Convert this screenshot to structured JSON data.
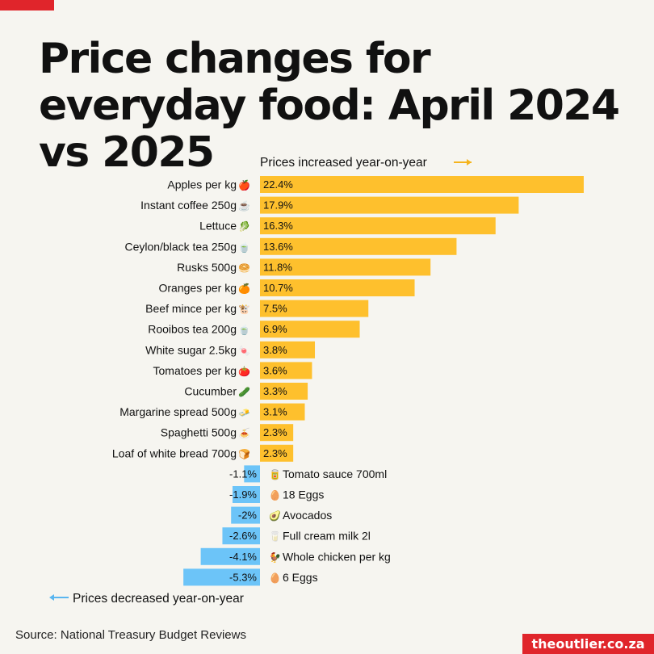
{
  "title": "Price changes for everyday food: April 2024 vs 2025",
  "source": "Source: National Treasury Budget Reviews",
  "brand": "theoutlier.co.za",
  "colors": {
    "positive": "#fec02d",
    "negative": "#6cc4f8",
    "accent": "#e0252b",
    "arrow_pos": "#f5b41d",
    "arrow_neg": "#5ab6f0"
  },
  "chart_data": {
    "type": "bar",
    "orientation": "horizontal",
    "title": "Price changes for everyday food: April 2024 vs 2025",
    "unit": "%",
    "annotations": {
      "increase": "Prices increased year-on-year",
      "decrease": "Prices decreased year-on-year"
    },
    "categories": [
      "Apples per kg",
      "Instant coffee 250g",
      "Lettuce",
      "Ceylon/black tea 250g",
      "Rusks 500g",
      "Oranges per kg",
      "Beef mince per kg",
      "Rooibos tea 200g",
      "White sugar 2.5kg",
      "Tomatoes per kg",
      "Cucumber",
      "Margarine spread 500g",
      "Spaghetti 500g",
      "Loaf of white bread 700g",
      "Tomato sauce 700ml",
      "18 Eggs",
      "Avocados",
      "Full cream milk 2l",
      "Whole chicken per kg",
      "6 Eggs"
    ],
    "values": [
      22.4,
      17.9,
      16.3,
      13.6,
      11.8,
      10.7,
      7.5,
      6.9,
      3.8,
      3.6,
      3.3,
      3.1,
      2.3,
      2.3,
      -1.1,
      -1.9,
      -2,
      -2.6,
      -4.1,
      -5.3
    ],
    "value_labels": [
      "22.4%",
      "17.9%",
      "16.3%",
      "13.6%",
      "11.8%",
      "10.7%",
      "7.5%",
      "6.9%",
      "3.8%",
      "3.6%",
      "3.3%",
      "3.1%",
      "2.3%",
      "2.3%",
      "-1.1%",
      "-1.9%",
      "-2%",
      "-2.6%",
      "-4.1%",
      "-5.3%"
    ],
    "icons": [
      "🍎",
      "☕",
      "🥬",
      "🍵",
      "🥯",
      "🍊",
      "🐮",
      "🍵",
      "🍬",
      "🍅",
      "🥒",
      "🧈",
      "🍝",
      "🍞",
      "🥫",
      "🥚",
      "🥑",
      "🥛",
      "🐓",
      "🥚"
    ]
  }
}
